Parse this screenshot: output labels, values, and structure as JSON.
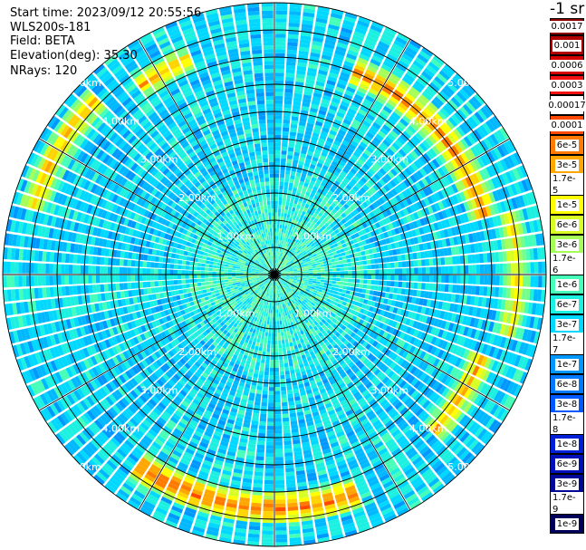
{
  "info": {
    "start_time": "Start time: 2023/09/12 20:55:56",
    "instrument": "WLS200s-181",
    "field": "Field: BETA",
    "elevation": "Elevation(deg): 35.30",
    "nrays": "NRays: 120"
  },
  "colorbar": {
    "unit": "-1 sr",
    "levels": [
      {
        "label": "0.0017",
        "color": "#8b0000"
      },
      {
        "label": "0.001",
        "color": "#b20000"
      },
      {
        "label": "0.0006",
        "color": "#d40000"
      },
      {
        "label": "0.0003",
        "color": "#f21010"
      },
      {
        "label": "0.00017",
        "color": "#ffffff"
      },
      {
        "label": "0.0001",
        "color": "#ff4a00"
      },
      {
        "label": "6e-5",
        "color": "#ff7a00"
      },
      {
        "label": "3e-5",
        "color": "#ffa600"
      },
      {
        "label": "1.7e-5",
        "color": "#ffd400"
      },
      {
        "label": "1e-5",
        "color": "#ffff00"
      },
      {
        "label": "6e-6",
        "color": "#d8ff25"
      },
      {
        "label": "3e-6",
        "color": "#a6ff59"
      },
      {
        "label": "1.7e-6",
        "color": "#74ff8b"
      },
      {
        "label": "1e-6",
        "color": "#46ffb9"
      },
      {
        "label": "6e-7",
        "color": "#1cf0e0"
      },
      {
        "label": "3e-7",
        "color": "#00d8ff"
      },
      {
        "label": "1.7e-7",
        "color": "#00b8ff"
      },
      {
        "label": "1e-7",
        "color": "#0098ff"
      },
      {
        "label": "6e-8",
        "color": "#0078ff"
      },
      {
        "label": "3e-8",
        "color": "#0058ff"
      },
      {
        "label": "1.7e-8",
        "color": "#0038f0"
      },
      {
        "label": "1e-8",
        "color": "#0020d8"
      },
      {
        "label": "6e-9",
        "color": "#0010b8"
      },
      {
        "label": "3e-9",
        "color": "#000898"
      },
      {
        "label": "1.7e-9",
        "color": "#000078"
      },
      {
        "label": "1e-9",
        "color": "#00005a"
      }
    ]
  },
  "chart_data": {
    "type": "heatmap",
    "projection": "polar-ppi",
    "field": "BETA",
    "nrays": 120,
    "max_range_km": 5.0,
    "range_rings_km": [
      1.0,
      2.0,
      3.0,
      4.0,
      5.0
    ],
    "ring_labels": [
      "1.00km",
      "2.00km",
      "3.00km",
      "4.00km",
      "5.00km"
    ],
    "background_level": "3e-7",
    "enhanced_arcs": [
      {
        "azimuth_from_deg": 20,
        "azimuth_to_deg": 75,
        "range_km": 4.0,
        "peak": "6e-5"
      },
      {
        "azimuth_from_deg": 75,
        "azimuth_to_deg": 105,
        "range_km": 4.45,
        "peak": "1.7e-5"
      },
      {
        "azimuth_from_deg": 110,
        "azimuth_to_deg": 135,
        "range_km": 4.1,
        "peak": "3e-5"
      },
      {
        "azimuth_from_deg": 160,
        "azimuth_to_deg": 215,
        "range_km": 4.3,
        "peak": "0.0001"
      },
      {
        "azimuth_from_deg": 285,
        "azimuth_to_deg": 315,
        "range_km": 4.6,
        "peak": "3e-5"
      },
      {
        "azimuth_from_deg": 325,
        "azimuth_to_deg": 338,
        "range_km": 4.25,
        "peak": "3e-5"
      }
    ]
  }
}
